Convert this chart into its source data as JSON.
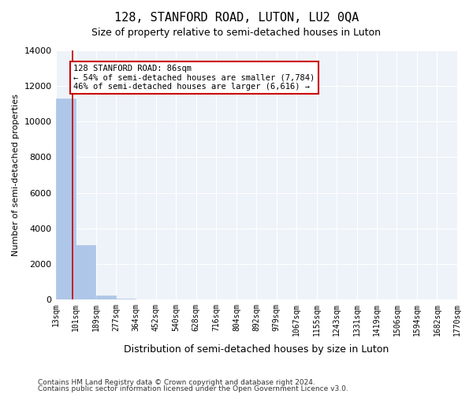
{
  "title": "128, STANFORD ROAD, LUTON, LU2 0QA",
  "subtitle": "Size of property relative to semi-detached houses in Luton",
  "xlabel": "Distribution of semi-detached houses by size in Luton",
  "ylabel": "Number of semi-detached properties",
  "property_size": 86,
  "property_label": "128 STANFORD ROAD: 86sqm",
  "pct_smaller": 54,
  "pct_larger": 46,
  "n_smaller": 7784,
  "n_larger": 6616,
  "annotation_line1": "128 STANFORD ROAD: 86sqm",
  "annotation_line2": "← 54% of semi-detached houses are smaller (7,784)",
  "annotation_line3": "46% of semi-detached houses are larger (6,616) →",
  "bin_edges": [
    13,
    101,
    189,
    277,
    364,
    452,
    540,
    628,
    716,
    804,
    892,
    979,
    1067,
    1155,
    1243,
    1331,
    1419,
    1506,
    1594,
    1682,
    1770
  ],
  "bin_labels": [
    "13sqm",
    "101sqm",
    "189sqm",
    "277sqm",
    "364sqm",
    "452sqm",
    "540sqm",
    "628sqm",
    "716sqm",
    "804sqm",
    "892sqm",
    "979sqm",
    "1067sqm",
    "1155sqm",
    "1243sqm",
    "1331sqm",
    "1419sqm",
    "1506sqm",
    "1594sqm",
    "1682sqm",
    "1770sqm"
  ],
  "bar_heights": [
    11300,
    3050,
    200,
    30,
    10,
    5,
    3,
    2,
    2,
    1,
    1,
    1,
    1,
    0,
    0,
    0,
    0,
    0,
    0,
    0
  ],
  "bar_color": "#aec6e8",
  "bar_edge_color": "#aec6e8",
  "background_color": "#eef3f9",
  "grid_color": "#ffffff",
  "annotation_box_color": "#ffffff",
  "annotation_box_edge": "#cc0000",
  "red_line_color": "#cc0000",
  "ylim": [
    0,
    14000
  ],
  "yticks": [
    0,
    2000,
    4000,
    6000,
    8000,
    10000,
    12000,
    14000
  ],
  "footer_line1": "Contains HM Land Registry data © Crown copyright and database right 2024.",
  "footer_line2": "Contains public sector information licensed under the Open Government Licence v3.0."
}
